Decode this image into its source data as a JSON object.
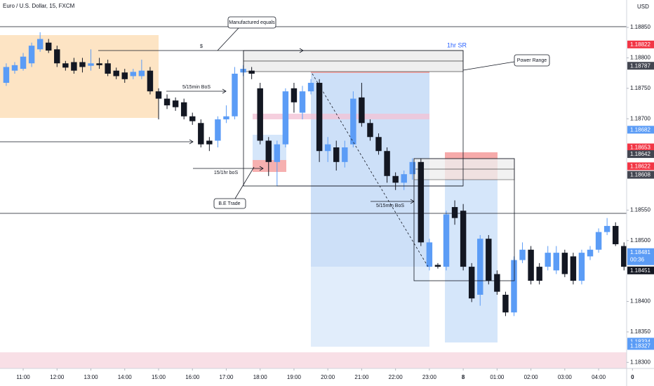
{
  "header": {
    "title": "Euro / U.S. Dollar, 15, FXCM",
    "currency": "USD"
  },
  "annotations": {
    "equals": "Manufactured equals",
    "dollar": "$",
    "bos1": "5/15min BoS",
    "bos2": "15/1hr boS",
    "trade": "B.E Trade",
    "sr": "1hr SR",
    "range": "Power Range",
    "bos3": "5/15min BoS"
  },
  "chart_data": {
    "type": "candlestick",
    "up_color": "#5b9cf6",
    "down_color": "#131722",
    "xlim": [
      -0.74,
      73.31
    ],
    "ylim": [
      1.1829,
      1.18895
    ],
    "xticks": [
      {
        "value": 2,
        "label": "11:00"
      },
      {
        "value": 6,
        "label": "12:00"
      },
      {
        "value": 10,
        "label": "13:00"
      },
      {
        "value": 14,
        "label": "14:00"
      },
      {
        "value": 18,
        "label": "15:00"
      },
      {
        "value": 22,
        "label": "16:00"
      },
      {
        "value": 26,
        "label": "17:00"
      },
      {
        "value": 30,
        "label": "18:00"
      },
      {
        "value": 34,
        "label": "19:00"
      },
      {
        "value": 38,
        "label": "20:00"
      },
      {
        "value": 42,
        "label": "21:00"
      },
      {
        "value": 46,
        "label": "22:00"
      },
      {
        "value": 50,
        "label": "23:00"
      },
      {
        "value": 54,
        "label": "8"
      },
      {
        "value": 58,
        "label": "01:00"
      },
      {
        "value": 62,
        "label": "02:00"
      },
      {
        "value": 66,
        "label": "03:00"
      },
      {
        "value": 70,
        "label": "04:00"
      },
      {
        "value": 74,
        "label": "0"
      }
    ],
    "yticks": [
      {
        "value": 1.1885,
        "label": "1.18850"
      },
      {
        "value": 1.188,
        "label": "1.18800"
      },
      {
        "value": 1.1875,
        "label": "1.18750"
      },
      {
        "value": 1.187,
        "label": "1.18700"
      },
      {
        "value": 1.1855,
        "label": "1.18550"
      },
      {
        "value": 1.185,
        "label": "1.18500"
      },
      {
        "value": 1.184,
        "label": "1.18400"
      },
      {
        "value": 1.1835,
        "label": "1.18350"
      },
      {
        "value": 1.183,
        "label": "1.18300"
      }
    ],
    "price_labels": [
      {
        "value": 1.18822,
        "label": "1.18822",
        "color": "#f23645"
      },
      {
        "value": 1.18787,
        "label": "1.18787",
        "color": "#434651"
      },
      {
        "value": 1.18682,
        "label": "1.18682",
        "color": "#5b9cf6"
      },
      {
        "value": 1.18653,
        "label": "1.18653",
        "color": "#f23645"
      },
      {
        "value": 1.18642,
        "label": "1.18642",
        "color": "#434651"
      },
      {
        "value": 1.18622,
        "label": "1.18622",
        "color": "#f23645"
      },
      {
        "value": 1.18608,
        "label": "1.18608",
        "color": "#434651"
      },
      {
        "value": 1.18481,
        "label": "1.18481",
        "color": "#5b9cf6",
        "countdown": "00:36"
      },
      {
        "value": 1.18451,
        "label": "1.18451",
        "color": "#131722"
      },
      {
        "value": 1.18334,
        "label": "1.18334",
        "color": "#5b9cf6"
      },
      {
        "value": 1.18327,
        "label": "1.18327",
        "color": "#5b9cf6"
      }
    ],
    "open": [
      1.18759,
      1.18779,
      1.18782,
      1.18791,
      1.18814,
      1.18825,
      1.18814,
      1.18791,
      1.18793,
      1.18793,
      1.18787,
      1.18791,
      1.18791,
      1.18779,
      1.18776,
      1.1877,
      1.1877,
      1.18779,
      1.18745,
      1.18733,
      1.1873,
      1.18727,
      1.18704,
      1.18693,
      1.18664,
      1.18664,
      1.18699,
      1.18704,
      1.18776,
      1.18779,
      1.1875,
      1.18664,
      1.18629,
      1.18658,
      1.1875,
      1.1871,
      1.18745,
      1.18759,
      1.18647,
      1.18653,
      1.18629,
      1.18658,
      1.18735,
      1.18693,
      1.1867,
      1.18647,
      1.18606,
      1.18595,
      1.18609,
      1.18629,
      1.18457,
      1.1846,
      1.18457,
      1.18555,
      1.18549,
      1.18457,
      1.18411,
      1.18503,
      1.18445,
      1.18411,
      1.18382,
      1.18468,
      1.18485,
      1.18457,
      1.18457,
      1.18451,
      1.1848,
      1.18474,
      1.18434,
      1.18474,
      1.18485,
      1.18514,
      1.18524,
      1.18491
    ],
    "high": [
      1.18791,
      1.18793,
      1.18808,
      1.18825,
      1.18842,
      1.18831,
      1.1882,
      1.18795,
      1.188,
      1.188,
      1.18814,
      1.188,
      1.18797,
      1.18784,
      1.18782,
      1.18782,
      1.18797,
      1.18785,
      1.1875,
      1.1874,
      1.18735,
      1.18733,
      1.1871,
      1.18699,
      1.1867,
      1.18704,
      1.18722,
      1.18785,
      1.18788,
      1.18785,
      1.18759,
      1.1867,
      1.18664,
      1.1875,
      1.18759,
      1.18754,
      1.18765,
      1.18765,
      1.1867,
      1.18664,
      1.18664,
      1.18745,
      1.18759,
      1.18699,
      1.18676,
      1.18653,
      1.18612,
      1.18615,
      1.18635,
      1.18635,
      1.18503,
      1.18463,
      1.18549,
      1.18566,
      1.1856,
      1.18463,
      1.18509,
      1.18509,
      1.18451,
      1.18416,
      1.18474,
      1.18497,
      1.18491,
      1.18463,
      1.18491,
      1.18491,
      1.18485,
      1.1848,
      1.18485,
      1.18491,
      1.1852,
      1.18537,
      1.1853,
      1.18497
    ],
    "low": [
      1.18754,
      1.18774,
      1.18779,
      1.18785,
      1.1881,
      1.18808,
      1.18785,
      1.18779,
      1.18774,
      1.18776,
      1.18779,
      1.18782,
      1.1877,
      1.18765,
      1.18759,
      1.18765,
      1.18765,
      1.1874,
      1.18699,
      1.18716,
      1.18713,
      1.18699,
      1.1869,
      1.18653,
      1.18647,
      1.18653,
      1.18693,
      1.18699,
      1.1877,
      1.18765,
      1.18658,
      1.18606,
      1.18589,
      1.18653,
      1.1871,
      1.18699,
      1.1874,
      1.18629,
      1.18629,
      1.18615,
      1.1862,
      1.18653,
      1.18687,
      1.18664,
      1.18641,
      1.18595,
      1.18583,
      1.18583,
      1.186,
      1.18491,
      1.18451,
      1.18454,
      1.18451,
      1.18526,
      1.18451,
      1.18399,
      1.18393,
      1.18428,
      1.18411,
      1.18376,
      1.18376,
      1.18463,
      1.18428,
      1.18428,
      1.18451,
      1.18445,
      1.1844,
      1.18428,
      1.18428,
      1.18468,
      1.1848,
      1.18509,
      1.18491,
      1.18451
    ],
    "close": [
      1.18785,
      1.18788,
      1.18802,
      1.1882,
      1.18831,
      1.18812,
      1.18791,
      1.18784,
      1.18779,
      1.18785,
      1.18791,
      1.18788,
      1.18774,
      1.1877,
      1.18765,
      1.18777,
      1.18779,
      1.18745,
      1.18733,
      1.18722,
      1.18719,
      1.18704,
      1.18696,
      1.18658,
      1.18658,
      1.18699,
      1.18704,
      1.18774,
      1.18782,
      1.18774,
      1.18664,
      1.18629,
      1.18658,
      1.18745,
      1.18727,
      1.18745,
      1.18759,
      1.18647,
      1.18658,
      1.18629,
      1.18653,
      1.18733,
      1.18693,
      1.1867,
      1.18647,
      1.18606,
      1.18595,
      1.18609,
      1.18629,
      1.18497,
      1.18497,
      1.18457,
      1.18543,
      1.18537,
      1.18457,
      1.18405,
      1.18503,
      1.18434,
      1.18416,
      1.18382,
      1.18468,
      1.18485,
      1.18434,
      1.18434,
      1.1848,
      1.1848,
      1.18445,
      1.18434,
      1.1848,
      1.18485,
      1.18514,
      1.18524,
      1.18494,
      1.18457
    ]
  }
}
